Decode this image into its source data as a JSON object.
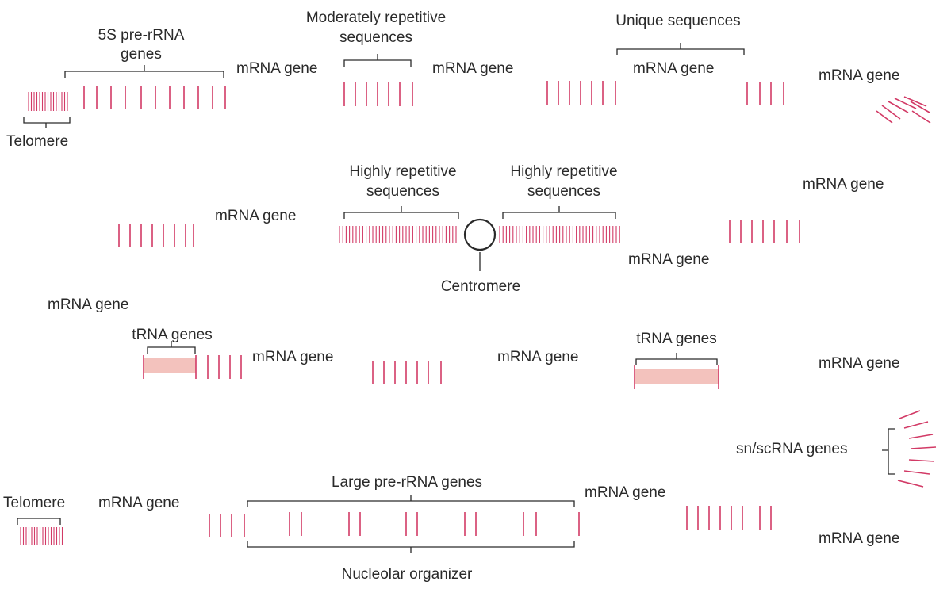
{
  "labels": {
    "telomere_top": "Telomere",
    "five_s_line1": "5S pre-rRNA",
    "five_s_line2": "genes",
    "mod_line1": "Moderately repetitive",
    "mod_line2": "sequences",
    "unique": "Unique sequences",
    "mrna_r1_a": "mRNA gene",
    "mrna_r1_b": "mRNA gene",
    "mrna_r1_c": "mRNA gene",
    "mrna_right_top": "mRNA gene",
    "mrna_right_mid": "mRNA gene",
    "high_left_line1": "Highly repetitive",
    "high_left_line2": "sequences",
    "high_right_line1": "Highly repetitive",
    "high_right_line2": "sequences",
    "mrna_r2_left": "mRNA gene",
    "mrna_r2_right": "mRNA gene",
    "centromere": "Centromere",
    "mrna_left_bend": "mRNA gene",
    "trna_left": "tRNA genes",
    "trna_right": "tRNA genes",
    "mrna_r3_a": "mRNA gene",
    "mrna_r3_b": "mRNA gene",
    "mrna_r3_right": "mRNA gene",
    "snsc": "sn/scRNA genes",
    "large_pre": "Large pre-rRNA genes",
    "telomere_bottom": "Telomere",
    "mrna_r4_a": "mRNA gene",
    "mrna_r4_b": "mRNA gene",
    "mrna_r4_right": "mRNA gene",
    "nucleolar": "Nucleolar organizer"
  },
  "colors": {
    "band": "#d23a66",
    "trna_block": "#f3c2bd",
    "outline": "#2a2a2a"
  }
}
